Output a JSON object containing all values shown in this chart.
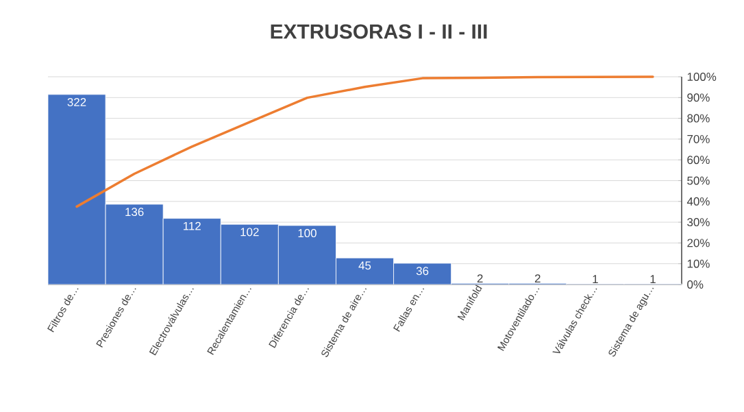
{
  "chart_data": {
    "type": "bar",
    "title": "EXTRUSORAS I - II - III",
    "categories": [
      "Filtros de…",
      "Presiones de…",
      "Electroválvulas…",
      "Recalentamien…",
      "Diferencia de…",
      "Sistema de aire…",
      "Fallas en…",
      "Manifold",
      "Motoventilado…",
      "Válvulas check…",
      "Sistema de agu…"
    ],
    "series": [
      {
        "color": "#4472c4",
        "values": [
          322,
          136,
          112,
          102,
          100,
          45,
          36,
          2,
          2,
          1,
          1
        ],
        "value_labels": [
          "322",
          "136",
          "112",
          "102",
          "100",
          "45",
          "36",
          "2",
          "2",
          "1",
          "1"
        ]
      },
      {
        "type": "line",
        "axis": "y2",
        "color": "#ed7d31",
        "values": [
          37.5,
          53.3,
          66.4,
          78.2,
          89.9,
          95.1,
          99.3,
          99.5,
          99.8,
          99.9,
          100
        ]
      }
    ],
    "ylim": [
      0,
      352
    ],
    "y2lim": [
      0,
      100
    ],
    "y2ticks": [
      {
        "value": 0,
        "label": "0%"
      },
      {
        "value": 10,
        "label": "10%"
      },
      {
        "value": 20,
        "label": "20%"
      },
      {
        "value": 30,
        "label": "30%"
      },
      {
        "value": 40,
        "label": "40%"
      },
      {
        "value": 50,
        "label": "50%"
      },
      {
        "value": 60,
        "label": "60%"
      },
      {
        "value": 70,
        "label": "70%"
      },
      {
        "value": 80,
        "label": "80%"
      },
      {
        "value": 90,
        "label": "90%"
      },
      {
        "value": 100,
        "label": "100%"
      }
    ],
    "grid": "y"
  }
}
